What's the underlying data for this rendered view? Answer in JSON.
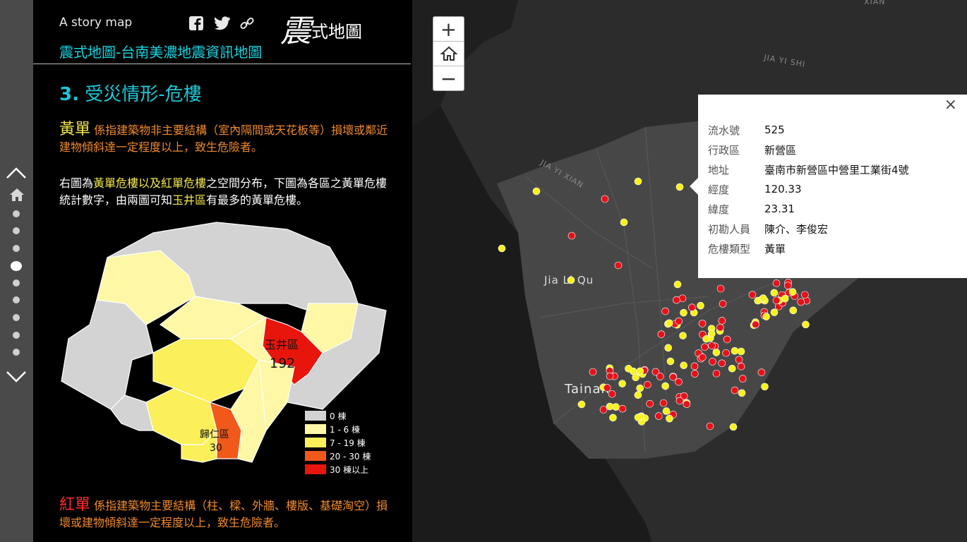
{
  "nav": {
    "up_icon": "chevron-up-icon",
    "home_icon": "home-icon",
    "down_icon": "chevron-down-icon",
    "dots": 10,
    "active_dot": 3
  },
  "header": {
    "tagline": "A story map",
    "logo_big": "震",
    "logo_small": "式地圖",
    "subtitle": "震式地圖-台南美濃地震資訊地圖",
    "social": [
      "facebook-icon",
      "twitter-icon",
      "link-icon"
    ]
  },
  "section": {
    "number": "3.",
    "title": "受災情形-危樓",
    "yellow_term": "黃單",
    "yellow_desc": "係指建築物非主要結構（室內隔間或天花板等）損壞或鄰近建物傾斜達一定程度以上，致生危險者。",
    "map_note_prefix": "右圖為",
    "map_note_hl1": "黃單危樓以及紅單危樓",
    "map_note_mid": "之空間分布，下圖為各區之黃單危樓統計數字，由兩圖可知",
    "map_note_hl2": "玉井區",
    "map_note_suffix": "有最多的黃單危樓。",
    "red_term": "紅單",
    "red_desc": "係指建築物主要結構（柱、樑、外牆、樓版、基礎淘空）損壞或建物傾斜達一定程度以上，致生危險者。"
  },
  "choropleth": {
    "labels": [
      {
        "name": "玉井區",
        "value": "192"
      },
      {
        "name": "歸仁區",
        "value": "30"
      }
    ],
    "legend": [
      {
        "label": "0 棟",
        "color": "#d3d3d3"
      },
      {
        "label": "1 - 6 棟",
        "color": "#fdf7a6"
      },
      {
        "label": "7 - 19 棟",
        "color": "#fbef5a"
      },
      {
        "label": "20 - 30 棟",
        "color": "#f0591a"
      },
      {
        "label": "30 棟以上",
        "color": "#e8150c"
      }
    ]
  },
  "map": {
    "zoom_in": "+",
    "home_icon": "home-icon",
    "zoom_out": "−",
    "place_labels": [
      "Jia Li Qu",
      "Tainan",
      "JIA YI XIAN",
      "JIA YI SHI",
      "XIAN"
    ],
    "popup": {
      "rows": [
        {
          "k": "流水號",
          "v": "525"
        },
        {
          "k": "行政區",
          "v": "新營區"
        },
        {
          "k": "地址",
          "v": "臺南市新營區中營里工業街4號"
        },
        {
          "k": "經度",
          "v": "120.33"
        },
        {
          "k": "緯度",
          "v": "23.31"
        },
        {
          "k": "初勘人員",
          "v": "陳介、李俊宏"
        },
        {
          "k": "危樓類型",
          "v": "黃單"
        }
      ]
    }
  }
}
